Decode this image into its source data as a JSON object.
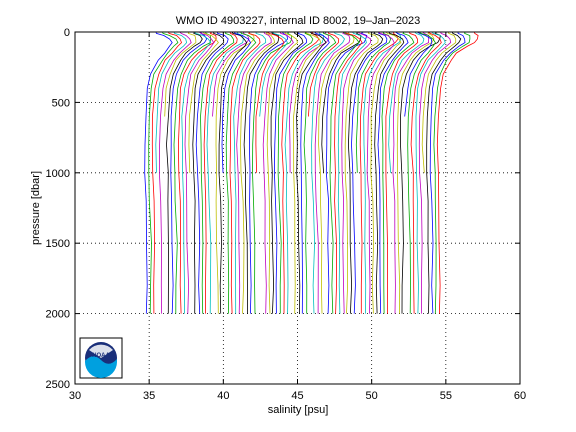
{
  "chart_data": {
    "type": "line",
    "title": "WMO ID 4903227, internal ID 8002, 19–Jan–2023",
    "xlabel": "salinity [psu]",
    "ylabel": "pressure [dbar]",
    "xlim": [
      30,
      60
    ],
    "ylim": [
      0,
      2500
    ],
    "y_reversed": true,
    "grid": true,
    "x_ticks": [
      "30",
      "35",
      "40",
      "45",
      "50",
      "55",
      "60"
    ],
    "y_ticks": [
      "0",
      "500",
      "1000",
      "1500",
      "2000",
      "2500"
    ],
    "profile_count": 80,
    "profile_offset_step_psu": 0.25,
    "profile_shape": {
      "pressure": [
        0,
        10,
        25,
        50,
        75,
        100,
        150,
        200,
        300,
        400,
        600,
        800,
        1000,
        1200,
        1500,
        1800,
        2000
      ],
      "salinity_base": [
        35.3,
        35.4,
        35.9,
        36.3,
        36.5,
        36.4,
        36.0,
        35.6,
        35.1,
        34.9,
        34.75,
        34.7,
        34.75,
        34.8,
        34.85,
        34.85,
        34.85
      ]
    },
    "profile_colors": [
      "#0000ff",
      "#00aa00",
      "#ff0000",
      "#00bfbf",
      "#bf00bf",
      "#bfbf00",
      "#000000"
    ],
    "logo": "noaa-logo"
  }
}
